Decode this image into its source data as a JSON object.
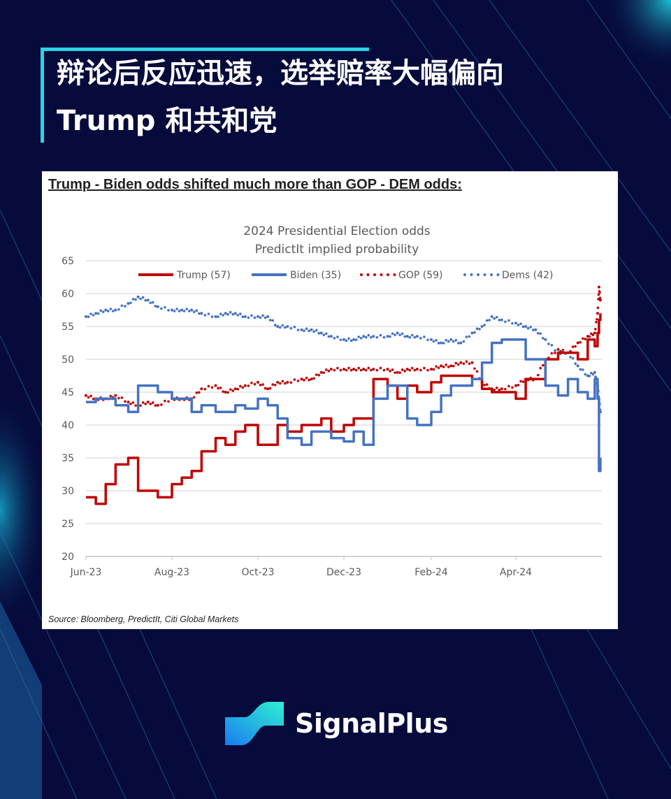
{
  "header": {
    "title_line1": "辩论后反应迅速，选举赔率大幅偏向",
    "title_line2": "Trump 和共和党",
    "accent_color": "#2ad3e0"
  },
  "card": {
    "heading": "Trump - Biden odds shifted much more than GOP - DEM odds",
    "heading_colon": ":",
    "source": "Source: Bloomberg, PredictIt, Citi Global Markets"
  },
  "brand": {
    "name": "SignalPlus",
    "logo_icon": "signalplus-wave-logo"
  },
  "chart_data": {
    "type": "line",
    "title": "2024 Presidential Election odds",
    "subtitle": "PredictIt implied probability",
    "ylim": [
      20,
      65
    ],
    "yticks": [
      20,
      25,
      30,
      35,
      40,
      45,
      50,
      55,
      60,
      65
    ],
    "xlim": [
      "2023-06-01",
      "2024-06-01"
    ],
    "xticks": [
      {
        "date": "2023-06-01",
        "label": "Jun-23"
      },
      {
        "date": "2023-08-01",
        "label": "Aug-23"
      },
      {
        "date": "2023-10-01",
        "label": "Oct-23"
      },
      {
        "date": "2023-12-01",
        "label": "Dec-23"
      },
      {
        "date": "2024-02-01",
        "label": "Feb-24"
      },
      {
        "date": "2024-04-01",
        "label": "Apr-24"
      }
    ],
    "grid": true,
    "legend_placement": "top",
    "x": [
      "2023-06-01",
      "2023-06-08",
      "2023-06-15",
      "2023-06-22",
      "2023-07-01",
      "2023-07-08",
      "2023-07-15",
      "2023-07-22",
      "2023-08-01",
      "2023-08-08",
      "2023-08-15",
      "2023-08-22",
      "2023-09-01",
      "2023-09-08",
      "2023-09-15",
      "2023-09-22",
      "2023-10-01",
      "2023-10-08",
      "2023-10-15",
      "2023-10-22",
      "2023-11-01",
      "2023-11-08",
      "2023-11-15",
      "2023-11-22",
      "2023-12-01",
      "2023-12-08",
      "2023-12-15",
      "2023-12-22",
      "2024-01-01",
      "2024-01-08",
      "2024-01-15",
      "2024-01-22",
      "2024-02-01",
      "2024-02-08",
      "2024-02-15",
      "2024-02-22",
      "2024-03-01",
      "2024-03-08",
      "2024-03-15",
      "2024-03-22",
      "2024-04-01",
      "2024-04-08",
      "2024-04-15",
      "2024-04-22",
      "2024-05-01",
      "2024-05-08",
      "2024-05-15",
      "2024-05-22",
      "2024-05-27",
      "2024-05-29",
      "2024-05-30",
      "2024-05-31"
    ],
    "series": [
      {
        "name": "Trump (57)",
        "style": "solid",
        "color": "#c00000",
        "values": [
          29,
          28,
          31,
          34,
          35,
          30,
          30,
          29,
          31,
          32,
          33,
          36,
          38,
          37,
          39,
          40,
          37,
          37,
          40,
          39,
          40,
          40,
          41,
          39,
          40,
          41,
          41,
          47,
          46,
          44,
          46,
          45,
          46.5,
          47.5,
          47.5,
          47.5,
          47,
          45.5,
          45,
          45,
          44,
          47,
          47,
          50,
          51,
          51,
          50,
          53,
          52,
          54,
          56,
          57
        ]
      },
      {
        "name": "Biden (35)",
        "style": "solid",
        "color": "#4472c4",
        "values": [
          43.5,
          44,
          44,
          43,
          42,
          46,
          46,
          45,
          44,
          44,
          42,
          43,
          42,
          42,
          43,
          42.5,
          44,
          43,
          41,
          38,
          37,
          39,
          39,
          38,
          37.5,
          39,
          37,
          44,
          46,
          46,
          41,
          40,
          42,
          44.5,
          46,
          46,
          47,
          49.5,
          52.5,
          53,
          53,
          50,
          50,
          46,
          44.5,
          47,
          45,
          44,
          47,
          44,
          33,
          35
        ]
      },
      {
        "name": "GOP (59)",
        "style": "dotted",
        "color": "#c00000",
        "values": [
          44.5,
          44,
          44,
          44.5,
          43.5,
          43,
          43.5,
          43,
          44,
          44,
          44,
          45.5,
          46,
          45,
          45.5,
          46,
          46.5,
          45.5,
          46.5,
          46.5,
          47,
          47,
          48,
          48.5,
          48.5,
          48.5,
          48.5,
          48.5,
          48.5,
          48,
          48.5,
          48.5,
          48.5,
          49,
          49,
          49.5,
          49.5,
          46.5,
          45.5,
          45.5,
          46,
          47,
          47,
          50,
          51.5,
          51,
          52.5,
          53.5,
          54,
          57,
          61,
          59
        ]
      },
      {
        "name": "Dems (42)",
        "style": "dotted",
        "color": "#4472c4",
        "values": [
          56.5,
          57,
          57.5,
          57.5,
          58.5,
          59.5,
          59,
          58,
          57.5,
          57.5,
          57.5,
          57,
          56.5,
          57,
          57,
          56.5,
          56.5,
          56.5,
          55,
          55,
          54.5,
          54.5,
          54,
          53.5,
          53,
          53,
          53.5,
          53.5,
          53.5,
          54,
          53.5,
          53.5,
          53,
          52.5,
          53,
          52.5,
          54,
          55,
          56.5,
          56,
          55.5,
          55,
          54.5,
          53,
          51,
          51,
          49,
          47.5,
          48,
          46,
          44,
          42
        ]
      }
    ]
  }
}
